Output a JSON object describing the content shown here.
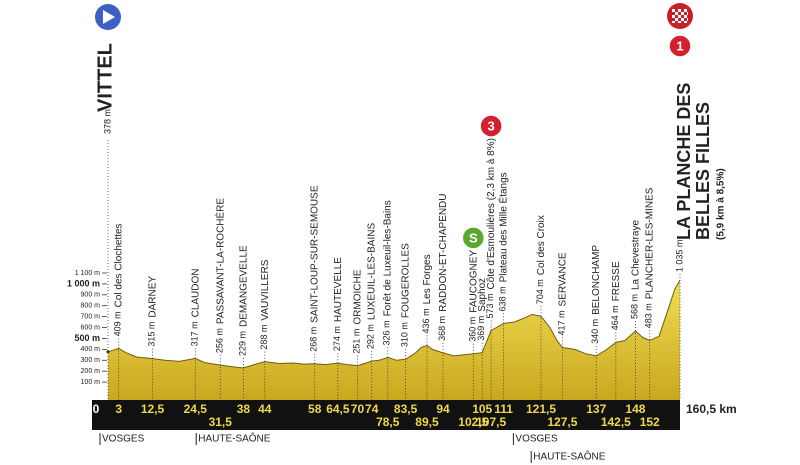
{
  "chart_data": {
    "type": "profile",
    "xlim": [
      0,
      160.5
    ],
    "ylim": [
      0,
      1100
    ],
    "yticks": [
      {
        "value": 100,
        "label": "100 m"
      },
      {
        "value": 200,
        "label": "200 m"
      },
      {
        "value": 300,
        "label": "300 m"
      },
      {
        "value": 400,
        "label": "400 m"
      },
      {
        "value": 500,
        "label": "500 m",
        "bold": true
      },
      {
        "value": 600,
        "label": "600 m"
      },
      {
        "value": 700,
        "label": "700 m"
      },
      {
        "value": 800,
        "label": "800 m"
      },
      {
        "value": 900,
        "label": "900 m"
      },
      {
        "value": 1000,
        "label": "1 000 m",
        "bold": true
      },
      {
        "value": 1100,
        "label": "1 100 m"
      }
    ],
    "profile": {
      "color": "#e6cc3c",
      "x": [
        0,
        3,
        5,
        8,
        12.5,
        16,
        20,
        24.5,
        27,
        31.5,
        35,
        38,
        41,
        44,
        48,
        52,
        55,
        58,
        61,
        64.5,
        67,
        70,
        72,
        74,
        76,
        78.5,
        81,
        83.5,
        86,
        88,
        89.5,
        91,
        94,
        97,
        100,
        102.5,
        105,
        107.5,
        109,
        111,
        114,
        117,
        119,
        121.5,
        124,
        126,
        127.5,
        131,
        134,
        137,
        140,
        142.5,
        145,
        148,
        150,
        152,
        154.6,
        157,
        159,
        160.5
      ],
      "values": [
        378,
        409,
        370,
        330,
        315,
        300,
        290,
        317,
        280,
        256,
        240,
        229,
        260,
        288,
        270,
        275,
        265,
        268,
        260,
        274,
        260,
        251,
        270,
        292,
        300,
        326,
        300,
        310,
        360,
        420,
        436,
        400,
        368,
        340,
        350,
        360,
        369,
        573,
        600,
        638,
        650,
        690,
        720,
        704,
        600,
        480,
        417,
        400,
        360,
        340,
        400,
        464,
        480,
        568,
        510,
        483,
        520,
        750,
        950,
        1035
      ]
    },
    "start": {
      "x": {
        "value": 0,
        "label": "0"
      },
      "value": 378,
      "value_label": "378 m",
      "name": "VITTEL"
    },
    "finish": {
      "x": {
        "value": 160.5,
        "label": "160,5 km"
      },
      "value": 1035,
      "value_label": "1 035 m",
      "name_lines": [
        "LA PLANCHE DES",
        "BELLES FILLES"
      ],
      "note": "(5,9 km à 8,5%)",
      "badge": "1"
    },
    "waypoints": {
      "x": [
        {
          "value": 3,
          "label": "3"
        },
        {
          "value": 12.5,
          "label": "12,5"
        },
        {
          "value": 24.5,
          "label": "24,5"
        },
        {
          "value": 31.5,
          "label": "31,5"
        },
        {
          "value": 38,
          "label": "38"
        },
        {
          "value": 44,
          "label": "44"
        },
        {
          "value": 58,
          "label": "58"
        },
        {
          "value": 64.5,
          "label": "64,5"
        },
        {
          "value": 70,
          "label": "70"
        },
        {
          "value": 74,
          "label": "74"
        },
        {
          "value": 78.5,
          "label": "78,5"
        },
        {
          "value": 83.5,
          "label": "83,5"
        },
        {
          "value": 89.5,
          "label": "89,5"
        },
        {
          "value": 94,
          "label": "94"
        },
        {
          "value": 102.5,
          "label": "102,5"
        },
        {
          "value": 105,
          "label": "105"
        },
        {
          "value": 107.5,
          "label": "107,5"
        },
        {
          "value": 111,
          "label": "111"
        },
        {
          "value": 121.5,
          "label": "121,5"
        },
        {
          "value": 127.5,
          "label": "127,5"
        },
        {
          "value": 137,
          "label": "137"
        },
        {
          "value": 142.5,
          "label": "142,5"
        },
        {
          "value": 148,
          "label": "148"
        },
        {
          "value": 152,
          "label": "152"
        }
      ],
      "values": [
        409,
        315,
        317,
        256,
        229,
        288,
        268,
        274,
        251,
        292,
        326,
        310,
        436,
        368,
        360,
        369,
        573,
        638,
        704,
        417,
        340,
        464,
        568,
        483
      ],
      "value_labels": [
        "409 m",
        "315 m",
        "317 m",
        "256 m",
        "229 m",
        "288 m",
        "268 m",
        "274 m",
        "251 m",
        "292 m",
        "326 m",
        "310 m",
        "436 m",
        "368 m",
        "360 m",
        "369 m",
        "573 m",
        "638 m",
        "704 m",
        "417 m",
        "340 m",
        "464 m",
        "568 m",
        "483 m"
      ],
      "names": [
        "Col des Clochettes",
        "DARNEY",
        "CLAUDON",
        "PASSAVANT-LA-ROCHÈRE",
        "DEMANGEVELLE",
        "VAUVILLERS",
        "SAINT-LOUP-SUR-SEMOUSE",
        "HAUTEVELLE",
        "ORMOICHE",
        "LUXEUIL-LES-BAINS",
        "Forêt de Luxeuil-les-Bains",
        "FOUGEROLLES",
        "Les Forges",
        "RADDON-ET-CHAPENDU",
        "FAUCOGNEY",
        "Saphoz",
        "Côte d'Esmoulières (2,3 km à 8%)",
        "Plateau des Mille Étangs",
        "Col des Croix",
        "SERVANCE",
        "BELONCHAMP",
        "FRESSE",
        "La Chevestraye",
        "PLANCHER-LES-MINES"
      ]
    },
    "markers": [
      {
        "x": 102.5,
        "label": "S",
        "color": "#5aa832"
      },
      {
        "x": 107.5,
        "label": "3",
        "color": "#d3202c"
      }
    ],
    "regions": [
      {
        "x": 0,
        "label": "VOSGES"
      },
      {
        "x": 27,
        "label": "HAUTE-SAÔNE"
      },
      {
        "x": 116,
        "label": "VOSGES"
      },
      {
        "x": 121,
        "label": "HAUTE-SAÔNE"
      }
    ]
  }
}
